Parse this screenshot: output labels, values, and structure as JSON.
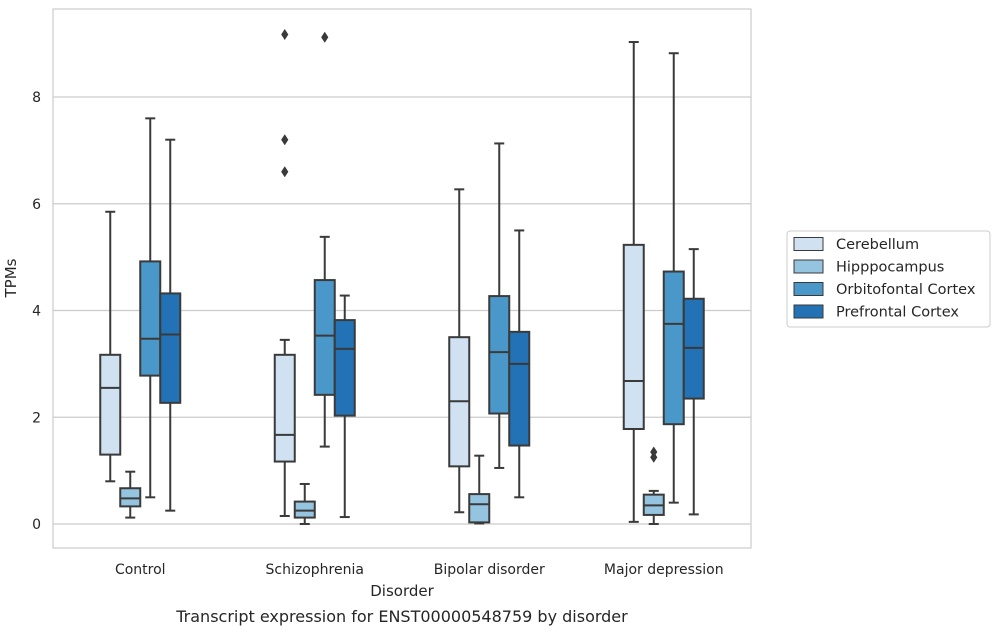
{
  "chart_data": {
    "type": "boxplot",
    "title": "",
    "caption": "Transcript expression for ENST00000548759 by disorder",
    "xlabel": "Disorder",
    "ylabel": "TPMs",
    "ylim": [
      -0.45,
      9.7
    ],
    "yticks": [
      0,
      2,
      4,
      6,
      8
    ],
    "grid": "horizontal",
    "legend_placement": "right",
    "categories": [
      "Control",
      "Schizophrenia",
      "Bipolar disorder",
      "Major depression"
    ],
    "series": [
      {
        "name": "Cerebellum",
        "color": "#d0e1f2",
        "boxes": [
          {
            "whisker_low": 0.8,
            "q1": 1.3,
            "median": 2.55,
            "q3": 3.17,
            "whisker_high": 5.85,
            "outliers": []
          },
          {
            "whisker_low": 0.15,
            "q1": 1.17,
            "median": 1.67,
            "q3": 3.17,
            "whisker_high": 3.45,
            "outliers": [
              9.17,
              7.2,
              6.6
            ]
          },
          {
            "whisker_low": 0.22,
            "q1": 1.08,
            "median": 2.3,
            "q3": 3.5,
            "whisker_high": 6.27,
            "outliers": []
          },
          {
            "whisker_low": 0.04,
            "q1": 1.78,
            "median": 2.68,
            "q3": 5.23,
            "whisker_high": 9.03,
            "outliers": []
          }
        ]
      },
      {
        "name": "Hipppocampus",
        "color": "#94c4df",
        "boxes": [
          {
            "whisker_low": 0.12,
            "q1": 0.33,
            "median": 0.48,
            "q3": 0.67,
            "whisker_high": 0.98,
            "outliers": []
          },
          {
            "whisker_low": 0.0,
            "q1": 0.12,
            "median": 0.25,
            "q3": 0.42,
            "whisker_high": 0.75,
            "outliers": []
          },
          {
            "whisker_low": 0.01,
            "q1": 0.03,
            "median": 0.37,
            "q3": 0.56,
            "whisker_high": 1.28,
            "outliers": []
          },
          {
            "whisker_low": 0.0,
            "q1": 0.17,
            "median": 0.35,
            "q3": 0.55,
            "whisker_high": 0.62,
            "outliers": [
              1.35,
              1.25
            ]
          }
        ]
      },
      {
        "name": "Orbitofontal Cortex",
        "color": "#4a98c9",
        "boxes": [
          {
            "whisker_low": 0.5,
            "q1": 2.78,
            "median": 3.47,
            "q3": 4.92,
            "whisker_high": 7.6,
            "outliers": []
          },
          {
            "whisker_low": 1.45,
            "q1": 2.42,
            "median": 3.53,
            "q3": 4.57,
            "whisker_high": 5.38,
            "outliers": [
              9.12
            ]
          },
          {
            "whisker_low": 1.05,
            "q1": 2.07,
            "median": 3.22,
            "q3": 4.27,
            "whisker_high": 7.13,
            "outliers": []
          },
          {
            "whisker_low": 0.4,
            "q1": 1.87,
            "median": 3.75,
            "q3": 4.73,
            "whisker_high": 8.82,
            "outliers": []
          }
        ]
      },
      {
        "name": "Prefrontal Cortex",
        "color": "#2372b5",
        "boxes": [
          {
            "whisker_low": 0.25,
            "q1": 2.27,
            "median": 3.55,
            "q3": 4.32,
            "whisker_high": 7.2,
            "outliers": []
          },
          {
            "whisker_low": 0.13,
            "q1": 2.03,
            "median": 3.28,
            "q3": 3.82,
            "whisker_high": 4.28,
            "outliers": []
          },
          {
            "whisker_low": 0.5,
            "q1": 1.47,
            "median": 3.0,
            "q3": 3.6,
            "whisker_high": 5.5,
            "outliers": []
          },
          {
            "whisker_low": 0.18,
            "q1": 2.35,
            "median": 3.3,
            "q3": 4.22,
            "whisker_high": 5.15,
            "outliers": []
          }
        ]
      }
    ]
  }
}
